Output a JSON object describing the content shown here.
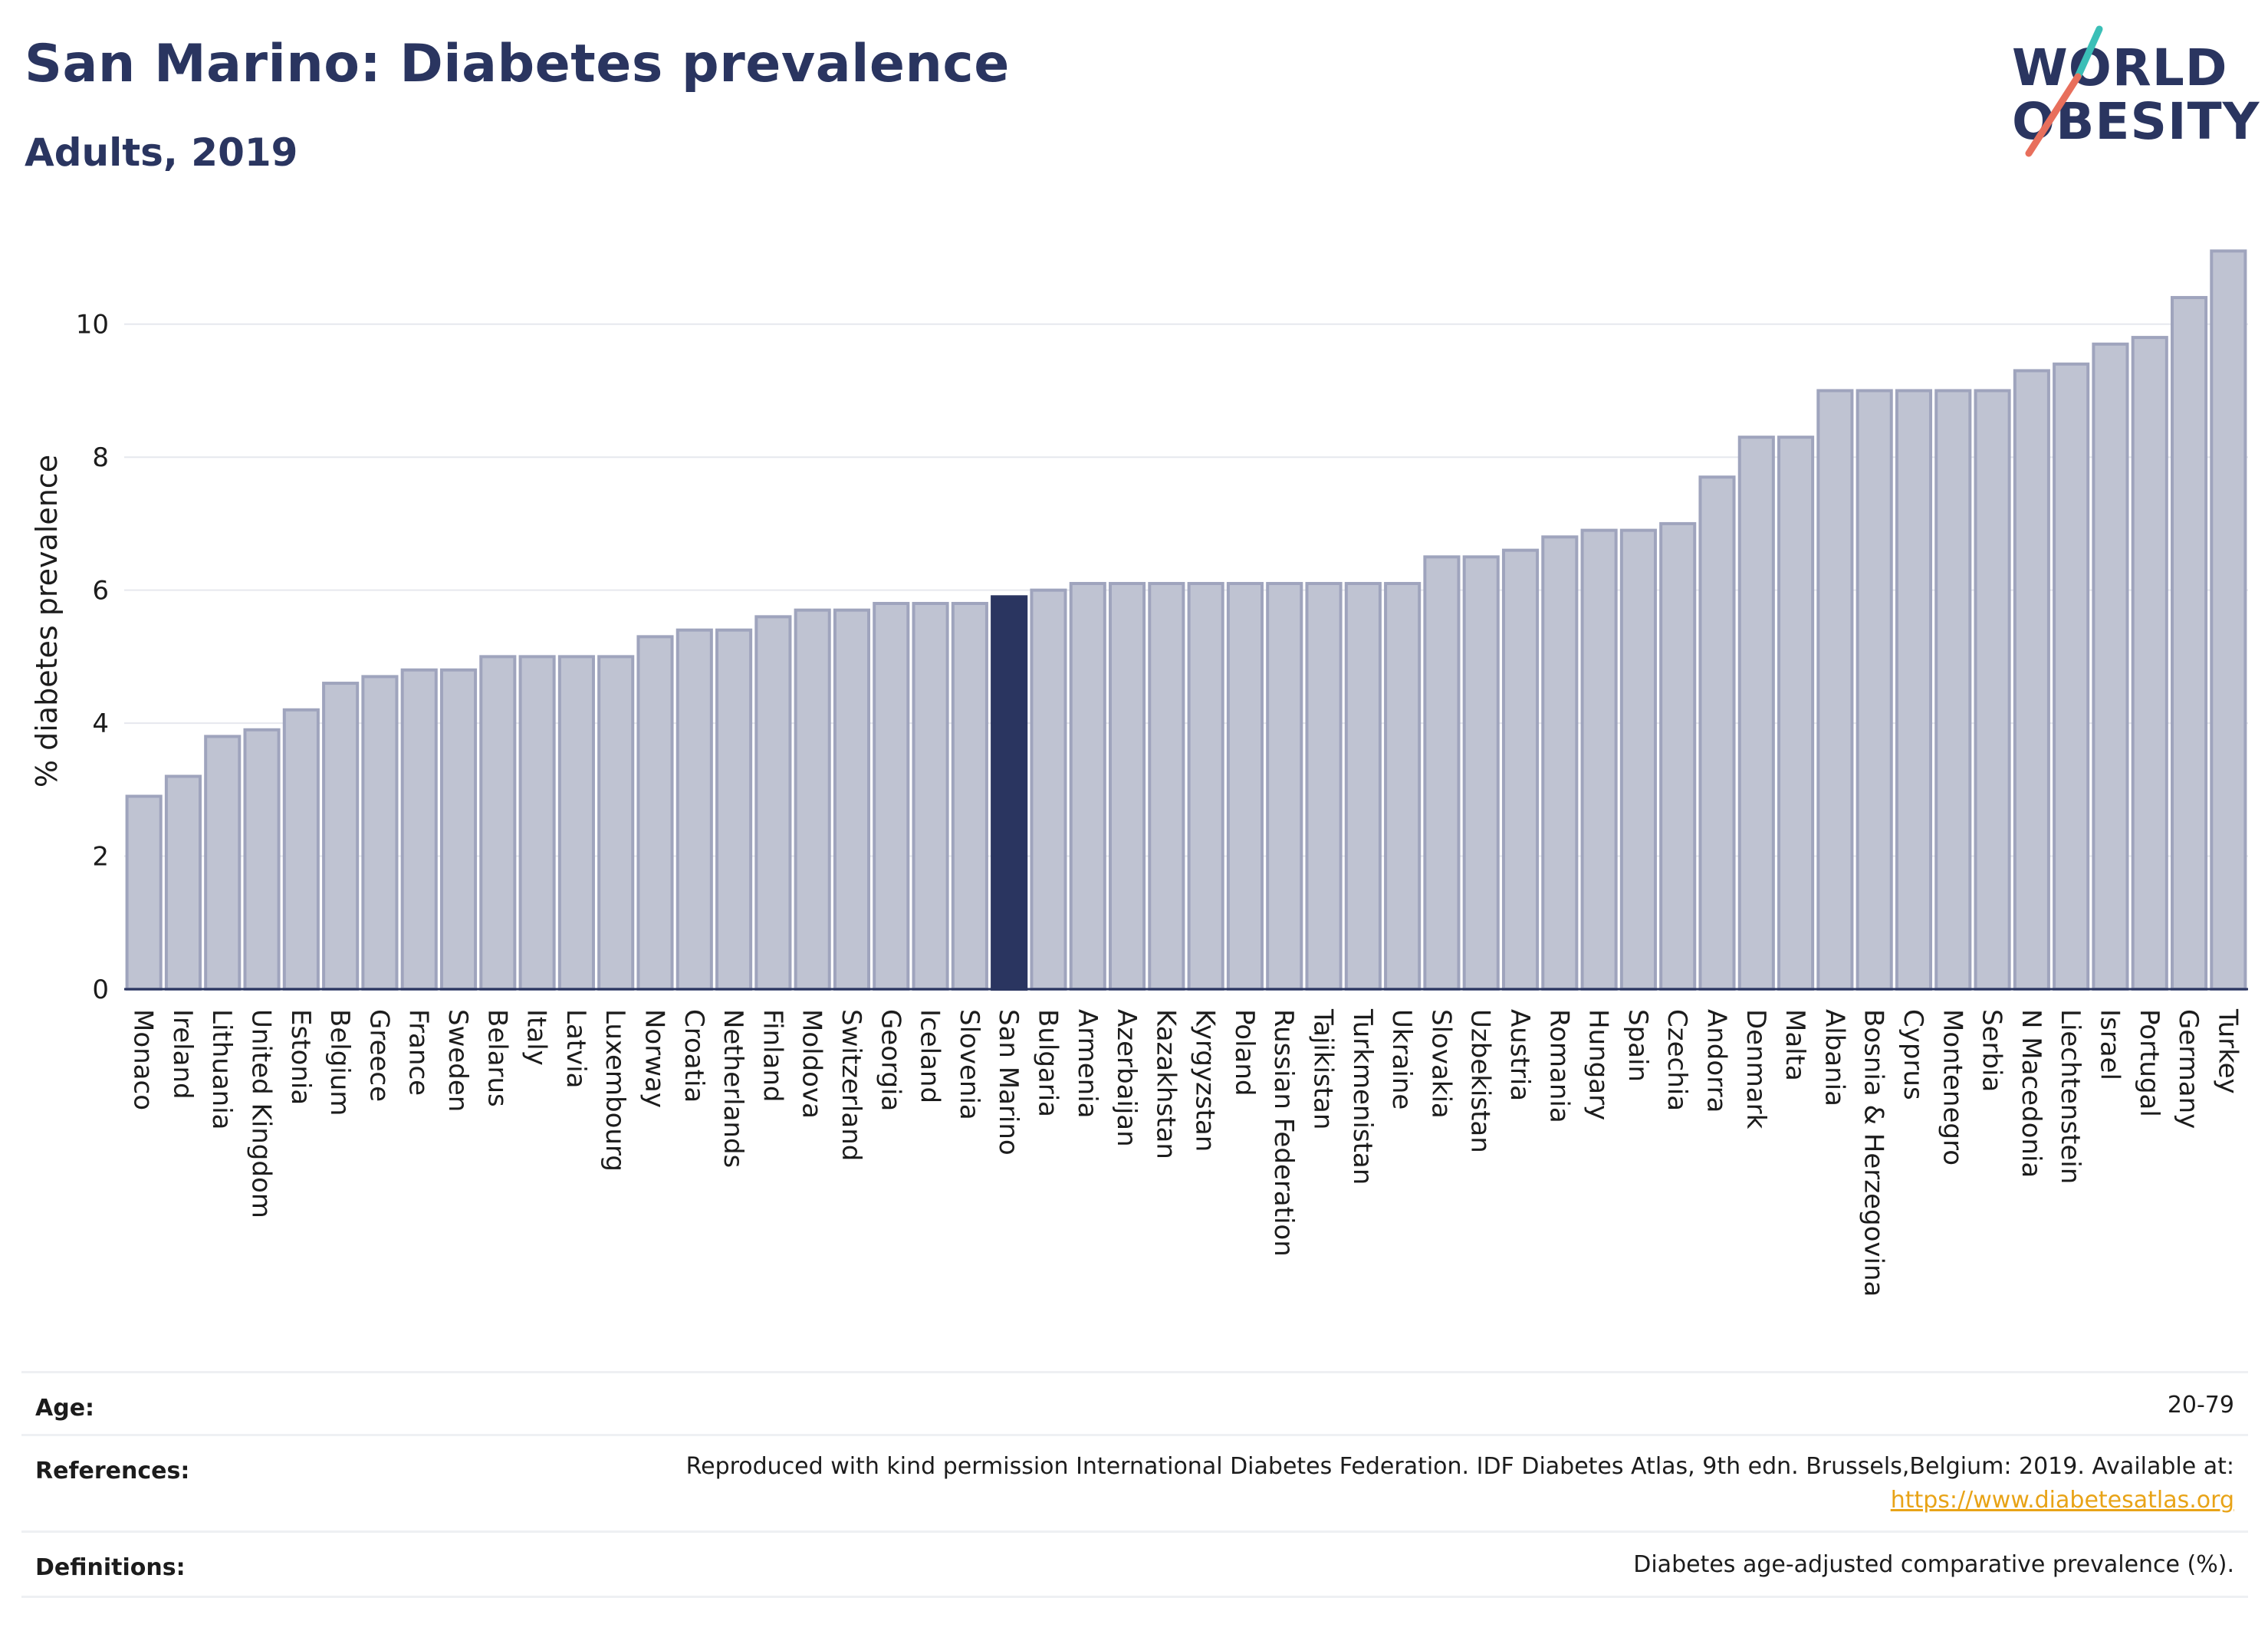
{
  "title": "San Marino: Diabetes prevalence",
  "subtitle": "Adults, 2019",
  "logo": {
    "line1": "WORLD",
    "line2": "OBESITY",
    "slash_colors": [
      "#3bbfb7",
      "#e86f5c"
    ]
  },
  "colors": {
    "bar": "#bfc3d2",
    "bar_stroke": "#9fa4bd",
    "highlight": "#2a3560",
    "grid": "#e6e8ee",
    "axis": "#2a3560"
  },
  "chart_data": {
    "type": "bar",
    "title": "San Marino: Diabetes prevalence",
    "subtitle": "Adults, 2019",
    "xlabel": "",
    "ylabel": "% diabetes prevalence",
    "ylim": [
      0,
      11.3
    ],
    "yticks": [
      0,
      2,
      4,
      6,
      8,
      10
    ],
    "grid": true,
    "highlight": "San Marino",
    "categories": [
      "Monaco",
      "Ireland",
      "Lithuania",
      "United Kingdom",
      "Estonia",
      "Belgium",
      "Greece",
      "France",
      "Sweden",
      "Belarus",
      "Italy",
      "Latvia",
      "Luxembourg",
      "Norway",
      "Croatia",
      "Netherlands",
      "Finland",
      "Moldova",
      "Switzerland",
      "Georgia",
      "Iceland",
      "Slovenia",
      "San Marino",
      "Bulgaria",
      "Armenia",
      "Azerbaijan",
      "Kazakhstan",
      "Kyrgyzstan",
      "Poland",
      "Russian Federation",
      "Tajikistan",
      "Turkmenistan",
      "Ukraine",
      "Slovakia",
      "Uzbekistan",
      "Austria",
      "Romania",
      "Hungary",
      "Spain",
      "Czechia",
      "Andorra",
      "Denmark",
      "Malta",
      "Albania",
      "Bosnia & Herzegovina",
      "Cyprus",
      "Montenegro",
      "Serbia",
      "N Macedonia",
      "Liechtenstein",
      "Israel",
      "Portugal",
      "Germany",
      "Turkey"
    ],
    "values": [
      2.9,
      3.2,
      3.8,
      3.9,
      4.2,
      4.6,
      4.7,
      4.8,
      4.8,
      5.0,
      5.0,
      5.0,
      5.0,
      5.3,
      5.4,
      5.4,
      5.6,
      5.7,
      5.7,
      5.8,
      5.8,
      5.8,
      5.9,
      6.0,
      6.1,
      6.1,
      6.1,
      6.1,
      6.1,
      6.1,
      6.1,
      6.1,
      6.1,
      6.5,
      6.5,
      6.6,
      6.8,
      6.9,
      6.9,
      7.0,
      7.7,
      8.3,
      8.3,
      9.0,
      9.0,
      9.0,
      9.0,
      9.0,
      9.3,
      9.4,
      9.7,
      9.8,
      10.4,
      11.1
    ]
  },
  "info": {
    "age": {
      "label": "Age:",
      "value": "20-79"
    },
    "references": {
      "label": "References:",
      "value": "Reproduced with kind permission International Diabetes Federation. IDF Diabetes Atlas, 9th edn. Brussels,Belgium: 2019. Available at:",
      "link": "https://www.diabetesatlas.org"
    },
    "definitions": {
      "label": "Definitions:",
      "value": "Diabetes age-adjusted comparative prevalence (%)."
    }
  }
}
